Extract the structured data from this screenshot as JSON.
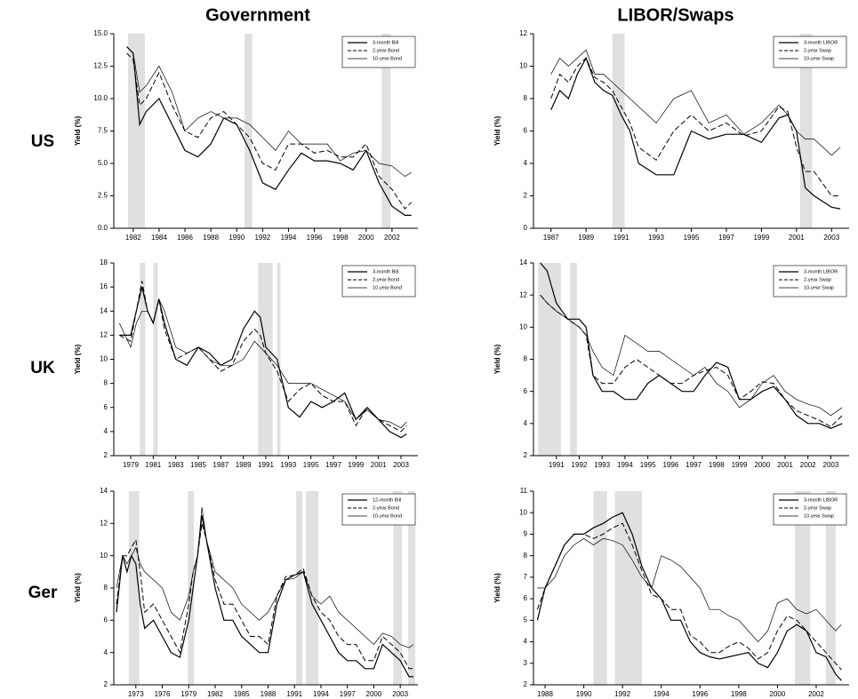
{
  "column_titles": [
    "Government",
    "LIBOR/Swaps"
  ],
  "row_labels": [
    "US",
    "UK",
    "Ger"
  ],
  "chart_data": [
    {
      "type": "line",
      "ylabel": "Yield (%)",
      "legend": "upper right",
      "shade_color": "#e0e0e0",
      "xlim": [
        1980.5,
        2004
      ],
      "xticks": [
        1982,
        1984,
        1986,
        1988,
        1990,
        1992,
        1994,
        1996,
        1998,
        2000,
        2002
      ],
      "ylim": [
        0,
        15
      ],
      "yticks": [
        {
          "value": 0,
          "label": "0.0"
        },
        {
          "value": 2.5,
          "label": "2.5"
        },
        {
          "value": 5,
          "label": "5.0"
        },
        {
          "value": 7.5,
          "label": "7.5"
        },
        {
          "value": 10,
          "label": "10.0"
        },
        {
          "value": 12.5,
          "label": "12.5"
        },
        {
          "value": 15,
          "label": "15.0"
        }
      ],
      "shaded_periods": [
        [
          1981.6,
          1982.9
        ],
        [
          1990.6,
          1991.2
        ],
        [
          2001.2,
          2001.9
        ]
      ],
      "x": [
        1981.5,
        1982,
        1982.5,
        1983,
        1984,
        1985,
        1986,
        1987,
        1988,
        1989,
        1990,
        1991,
        1992,
        1993,
        1994,
        1995,
        1996,
        1997,
        1998,
        1999,
        2000,
        2001,
        2002,
        2003,
        2003.5
      ],
      "series": [
        {
          "name": "3-month Bill",
          "color": "#000000",
          "line_style": "solid",
          "values": [
            14,
            13.5,
            8,
            9,
            10,
            8,
            6,
            5.5,
            6.5,
            8.5,
            8,
            6,
            3.5,
            3,
            4.5,
            5.8,
            5.2,
            5.2,
            5,
            4.5,
            6,
            3.5,
            1.7,
            1,
            1
          ]
        },
        {
          "name": "2-year Bond",
          "color": "#000000",
          "line_style": "dashed",
          "values": [
            13.5,
            13,
            9.5,
            10,
            12,
            9.5,
            7.5,
            7,
            8.5,
            9,
            8,
            7,
            5,
            4.5,
            6.5,
            6.5,
            5.8,
            6,
            5.5,
            5.5,
            6.5,
            4,
            3,
            1.5,
            2
          ]
        },
        {
          "name": "10-year Bond",
          "color": "#000000",
          "line_style": "thin",
          "values": [
            14,
            13.5,
            10.5,
            11,
            12.5,
            10.5,
            7.5,
            8.5,
            9,
            8.5,
            8.5,
            8,
            7,
            6,
            7.5,
            6.5,
            6.5,
            6.5,
            5.2,
            5.8,
            6,
            5,
            4.8,
            4,
            4.3
          ]
        }
      ]
    },
    {
      "type": "line",
      "ylabel": "Yield (%)",
      "legend": "upper right",
      "shade_color": "#e0e0e0",
      "xlim": [
        1986,
        2004
      ],
      "xticks": [
        1987,
        1989,
        1991,
        1993,
        1995,
        1997,
        1999,
        2001,
        2003
      ],
      "ylim": [
        0,
        12
      ],
      "yticks": [
        0,
        2,
        4,
        6,
        8,
        10,
        12
      ],
      "shaded_periods": [
        [
          1990.5,
          1991.2
        ],
        [
          2001.2,
          2001.9
        ]
      ],
      "x": [
        1987,
        1987.5,
        1988,
        1988.5,
        1989,
        1989.5,
        1990,
        1990.5,
        1991,
        1991.5,
        1992,
        1993,
        1994,
        1995,
        1996,
        1997,
        1998,
        1999,
        2000,
        2000.5,
        2001,
        2001.5,
        2002,
        2003,
        2003.5
      ],
      "series": [
        {
          "name": "3-month LIBOR",
          "color": "#000000",
          "line_style": "solid",
          "values": [
            7.3,
            8.5,
            8,
            9.5,
            10.5,
            9,
            8.5,
            8.2,
            7,
            6,
            4,
            3.3,
            3.3,
            6,
            5.5,
            5.8,
            5.8,
            5.3,
            6.8,
            7,
            6,
            2.5,
            2,
            1.3,
            1.2
          ]
        },
        {
          "name": "2-year Swap",
          "color": "#000000",
          "line_style": "dashed",
          "values": [
            8,
            9.5,
            9,
            10,
            10.5,
            9.3,
            9,
            8.5,
            7.5,
            6.5,
            5,
            4.2,
            6,
            7,
            6,
            6.5,
            5.7,
            6,
            7.5,
            7.2,
            5,
            3.5,
            3.5,
            2,
            2
          ]
        },
        {
          "name": "10-year Swap",
          "color": "#000000",
          "line_style": "thin",
          "values": [
            9.5,
            10.5,
            10,
            10.5,
            11,
            9.5,
            9.5,
            9,
            8.5,
            8,
            7.5,
            6.5,
            8,
            8.5,
            6.5,
            7,
            5.8,
            6.5,
            7.6,
            7,
            6,
            5.5,
            5.5,
            4.5,
            5
          ]
        }
      ]
    },
    {
      "type": "line",
      "ylabel": "Yield (%)",
      "legend": "upper right",
      "shade_color": "#e0e0e0",
      "xlim": [
        1977.5,
        2004.5
      ],
      "xticks": [
        1979,
        1981,
        1983,
        1985,
        1987,
        1989,
        1991,
        1993,
        1995,
        1997,
        1999,
        2001,
        2003
      ],
      "ylim": [
        2,
        18
      ],
      "yticks": [
        2,
        4,
        6,
        8,
        10,
        12,
        14,
        16,
        18
      ],
      "shaded_periods": [
        [
          1979.8,
          1980.3
        ],
        [
          1981,
          1981.4
        ],
        [
          1990.3,
          1991.6
        ],
        [
          1992,
          1992.3
        ]
      ],
      "x": [
        1978,
        1979,
        1979.5,
        1980,
        1980.5,
        1981,
        1981.5,
        1982,
        1983,
        1984,
        1985,
        1986,
        1987,
        1988,
        1989,
        1990,
        1990.5,
        1991,
        1992,
        1993,
        1994,
        1995,
        1996,
        1997,
        1998,
        1999,
        2000,
        2001,
        2002,
        2003,
        2003.5
      ],
      "series": [
        {
          "name": "3-month Bill",
          "color": "#000000",
          "line_style": "solid",
          "values": [
            12,
            12,
            14,
            16,
            14,
            13,
            15,
            13,
            10,
            9.5,
            11,
            10.5,
            9.5,
            10,
            12.5,
            14,
            13.5,
            11,
            10,
            6,
            5.2,
            6.5,
            6,
            6.5,
            7.2,
            5,
            6,
            5,
            4,
            3.5,
            3.8
          ]
        },
        {
          "name": "2-year Bond",
          "color": "#000000",
          "line_style": "dashed",
          "values": [
            12,
            11.5,
            14,
            16.5,
            14,
            13,
            15,
            12.5,
            10,
            10.5,
            11,
            10,
            9,
            9.5,
            11.5,
            12.5,
            12,
            10.5,
            9,
            6.5,
            7.5,
            8,
            7,
            6.5,
            6.5,
            4.5,
            6,
            5,
            4.5,
            4,
            4.5
          ]
        },
        {
          "name": "10-year Bond",
          "color": "#000000",
          "line_style": "thin",
          "values": [
            13,
            11,
            13,
            14,
            14,
            13,
            15,
            14,
            11,
            10.5,
            11,
            10,
            9.5,
            9.5,
            10,
            11.5,
            11,
            10.5,
            9.5,
            8,
            8,
            8,
            7.5,
            7,
            6.5,
            5,
            5.8,
            5,
            4.8,
            4.3,
            4.8
          ]
        }
      ]
    },
    {
      "type": "line",
      "ylabel": "Yield (%)",
      "legend": "upper right",
      "shade_color": "#e0e0e0",
      "xlim": [
        1990,
        2003.8
      ],
      "xticks": [
        1991,
        1992,
        1993,
        1994,
        1995,
        1996,
        1997,
        1998,
        1999,
        2000,
        2001,
        2002,
        2003
      ],
      "ylim": [
        2,
        14
      ],
      "yticks": [
        2,
        4,
        6,
        8,
        10,
        12,
        14
      ],
      "shaded_periods": [
        [
          1990.2,
          1991.2
        ],
        [
          1991.6,
          1991.9
        ]
      ],
      "x": [
        1990.3,
        1990.6,
        1991,
        1991.5,
        1992,
        1992.3,
        1992.6,
        1993,
        1993.5,
        1994,
        1994.5,
        1995,
        1995.5,
        1996,
        1996.5,
        1997,
        1997.5,
        1998,
        1998.5,
        1999,
        1999.5,
        2000,
        2000.5,
        2001,
        2001.5,
        2002,
        2002.5,
        2003,
        2003.5
      ],
      "series": [
        {
          "name": "3-month LIBOR",
          "color": "#000000",
          "line_style": "solid",
          "values": [
            14,
            13.5,
            11.5,
            10.5,
            10.5,
            10,
            7,
            6,
            6,
            5.5,
            5.5,
            6.5,
            7,
            6.5,
            6,
            6,
            7,
            7.8,
            7.5,
            5.5,
            5.5,
            6,
            6.3,
            5.5,
            4.5,
            4,
            4,
            3.7,
            4
          ]
        },
        {
          "name": "2-year Swap",
          "color": "#000000",
          "line_style": "dashed",
          "values": [
            12,
            11.5,
            11,
            10.5,
            10,
            9.5,
            7,
            6.5,
            6.5,
            7.5,
            8,
            7.5,
            7,
            6.5,
            6.5,
            7,
            7.3,
            7.5,
            7,
            5.5,
            6,
            6.6,
            6.5,
            5.5,
            4.8,
            4.5,
            4.2,
            3.8,
            4.5
          ]
        },
        {
          "name": "10-year Swap",
          "color": "#000000",
          "line_style": "thin",
          "values": [
            12,
            11.5,
            11,
            10.5,
            10,
            9.5,
            8.5,
            7.5,
            7,
            9.5,
            9,
            8.5,
            8.5,
            8,
            7.5,
            7,
            7.5,
            6.5,
            6,
            5,
            5.5,
            6.5,
            7,
            6,
            5.5,
            5.2,
            5,
            4.5,
            5
          ]
        }
      ]
    },
    {
      "type": "line",
      "ylabel": "Yield (%)",
      "legend": "upper right",
      "shade_color": "#e0e0e0",
      "xlim": [
        1970.5,
        2005
      ],
      "xticks": [
        1973,
        1976,
        1979,
        1982,
        1985,
        1988,
        1991,
        1994,
        1997,
        2000,
        2003
      ],
      "ylim": [
        2,
        14
      ],
      "yticks": [
        2,
        4,
        6,
        8,
        10,
        12,
        14
      ],
      "shaded_periods": [
        [
          1972.2,
          1973.4
        ],
        [
          1978.9,
          1979.6
        ],
        [
          1991.2,
          1991.9
        ],
        [
          1992.3,
          1993.7
        ],
        [
          2002.2,
          2003.2
        ],
        [
          2003.9,
          2004.7
        ]
      ],
      "x": [
        1970.8,
        1971.5,
        1972,
        1972.5,
        1973,
        1973.5,
        1974,
        1975,
        1976,
        1977,
        1978,
        1979,
        1979.5,
        1980,
        1980.5,
        1981,
        1982,
        1983,
        1984,
        1985,
        1986,
        1987,
        1988,
        1989,
        1990,
        1991,
        1992,
        1993,
        1994,
        1995,
        1996,
        1997,
        1998,
        1999,
        2000,
        2001,
        2002,
        2003,
        2004,
        2004.5
      ],
      "series": [
        {
          "name": "12-month Bill",
          "color": "#000000",
          "line_style": "solid",
          "values": [
            6.5,
            10,
            9,
            10,
            9.5,
            7,
            5.5,
            6,
            5,
            4,
            3.7,
            6,
            8,
            10,
            12.5,
            11,
            8,
            6,
            6,
            5,
            4.5,
            4,
            4,
            7,
            8.5,
            8.8,
            9,
            7,
            6,
            5,
            4,
            3.5,
            3.5,
            3,
            3,
            4.5,
            4,
            3.5,
            2.5,
            2.5
          ]
        },
        {
          "name": "2-year Bond",
          "color": "#000000",
          "line_style": "dashed",
          "values": [
            7,
            10,
            10,
            10.5,
            11,
            9,
            6.5,
            7,
            6,
            5,
            4,
            7,
            9,
            10,
            12,
            11,
            8.5,
            7,
            7,
            6,
            5,
            5,
            4.5,
            7.5,
            8.7,
            8.8,
            9.2,
            7.5,
            6.5,
            6,
            5,
            4.5,
            4.5,
            3.5,
            3.5,
            5,
            4.5,
            4,
            3,
            3
          ]
        },
        {
          "name": "10-year Bond",
          "color": "#000000",
          "line_style": "thin",
          "values": [
            8,
            10,
            9.5,
            10,
            10.5,
            9.5,
            9,
            8.5,
            8,
            6.5,
            6,
            7.5,
            9,
            10,
            13,
            11,
            9,
            8.5,
            8,
            7,
            6.5,
            6,
            6.5,
            7.5,
            8.5,
            8.6,
            9,
            7.5,
            7,
            7.5,
            6.5,
            6,
            5.5,
            5,
            4.5,
            5.2,
            5,
            4.5,
            4.3,
            4.5
          ]
        }
      ]
    },
    {
      "type": "line",
      "ylabel": "Yield (%)",
      "legend": "upper right",
      "shade_color": "#e0e0e0",
      "xlim": [
        1987.4,
        2003.7
      ],
      "xticks": [
        1988,
        1990,
        1992,
        1994,
        1996,
        1998,
        2000,
        2002
      ],
      "ylim": [
        2,
        11
      ],
      "yticks": [
        2,
        3,
        4,
        5,
        6,
        7,
        8,
        9,
        10,
        11
      ],
      "shaded_periods": [
        [
          1990.5,
          1991.2
        ],
        [
          1991.6,
          1993
        ],
        [
          2000.9,
          2001.7
        ],
        [
          2002.5,
          2003
        ]
      ],
      "x": [
        1987.6,
        1988,
        1988.5,
        1989,
        1989.5,
        1990,
        1990.5,
        1991,
        1991.5,
        1992,
        1992.5,
        1993,
        1993.5,
        1994,
        1994.5,
        1995,
        1995.5,
        1996,
        1996.5,
        1997,
        1997.5,
        1998,
        1998.5,
        1999,
        1999.5,
        2000,
        2000.5,
        2001,
        2001.5,
        2002,
        2002.5,
        2003,
        2003.3
      ],
      "series": [
        {
          "name": "3-month LIBOR",
          "color": "#000000",
          "line_style": "solid",
          "values": [
            5,
            6.5,
            7.5,
            8.5,
            9,
            9,
            9.3,
            9.5,
            9.8,
            10,
            9,
            7.5,
            6.5,
            6,
            5,
            5,
            4,
            3.5,
            3.3,
            3.2,
            3.3,
            3.4,
            3.5,
            3,
            2.8,
            3.5,
            4.5,
            4.8,
            4.5,
            3.5,
            3.3,
            2.5,
            2.2
          ]
        },
        {
          "name": "2-year Swap",
          "color": "#000000",
          "line_style": "dashed",
          "values": [
            5.5,
            6.5,
            7.5,
            8.5,
            9,
            9,
            8.8,
            9,
            9.3,
            9.5,
            8.5,
            7.3,
            6.2,
            6,
            5.5,
            5.5,
            4.3,
            4,
            3.5,
            3.5,
            3.8,
            4,
            3.7,
            3.2,
            3.5,
            4.5,
            5.2,
            5,
            4.5,
            4,
            3.5,
            3,
            2.7
          ]
        },
        {
          "name": "10-year Swap",
          "color": "#000000",
          "line_style": "thin",
          "values": [
            6.5,
            6.5,
            7,
            8,
            8.5,
            8.8,
            8.5,
            8.8,
            8.7,
            8.5,
            7.8,
            7,
            6.5,
            8,
            7.8,
            7.5,
            7,
            6.5,
            5.5,
            5.5,
            5.2,
            5,
            4.5,
            4,
            4.5,
            5.8,
            6,
            5.5,
            5.3,
            5.5,
            5,
            4.5,
            4.8
          ]
        }
      ]
    }
  ]
}
